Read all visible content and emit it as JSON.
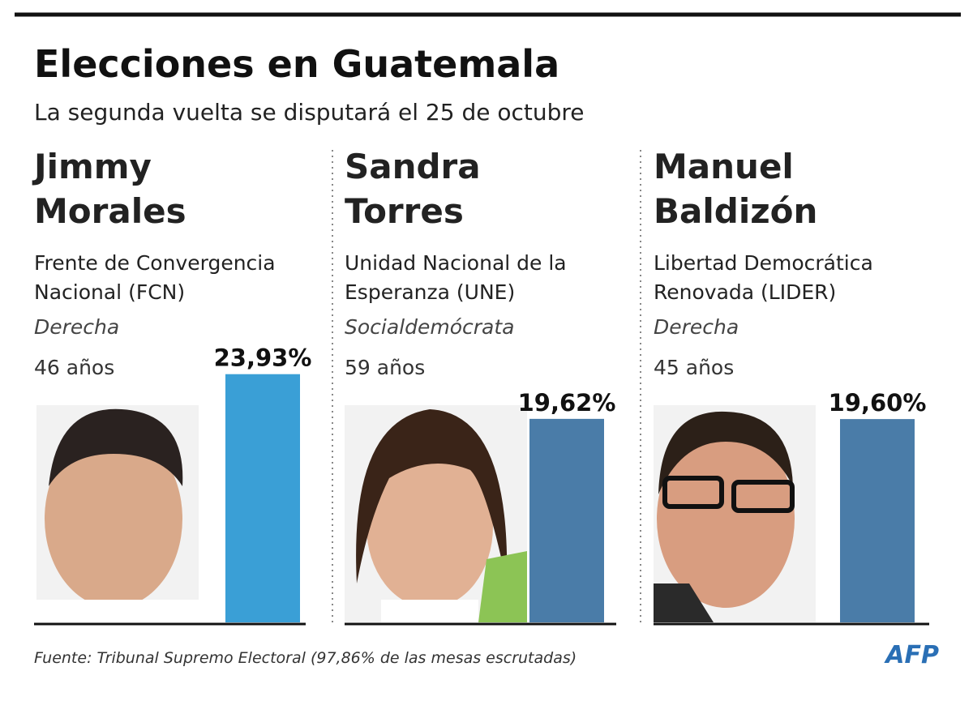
{
  "chart_data": {
    "type": "bar",
    "title": "Elecciones en Guatemala",
    "subtitle": "La segunda vuelta se disputará el 25 de octubre",
    "candidates": [
      {
        "first": "Jimmy",
        "last": "Morales",
        "party": [
          "Frente de Convergencia",
          "Nacional (FCN)"
        ],
        "ideology": "Derecha",
        "age": "46 años",
        "color": "#3a9fd6"
      },
      {
        "first": "Sandra",
        "last": "Torres",
        "party": [
          "Unidad Nacional de la",
          "Esperanza (UNE)"
        ],
        "ideology": "Socialdemócrata",
        "age": "59 años",
        "color": "#4a7ca8"
      },
      {
        "first": "Manuel",
        "last": "Baldizón",
        "party": [
          "Libertad Democrática",
          "Renovada (LIDER)"
        ],
        "ideology": "Derecha",
        "age": "45 años",
        "color": "#4a7ca8"
      }
    ],
    "values": [
      23.93,
      19.62,
      19.6
    ],
    "value_labels": [
      "23,93%",
      "19,62%",
      "19,60%"
    ],
    "bar_colors": [
      "#3a9fd6",
      "#4a7ca8",
      "#4a7ca8"
    ],
    "source": "Fuente: Tribunal Supremo Electoral (97,86% de las mesas escrutadas)",
    "logo": "AFP"
  }
}
